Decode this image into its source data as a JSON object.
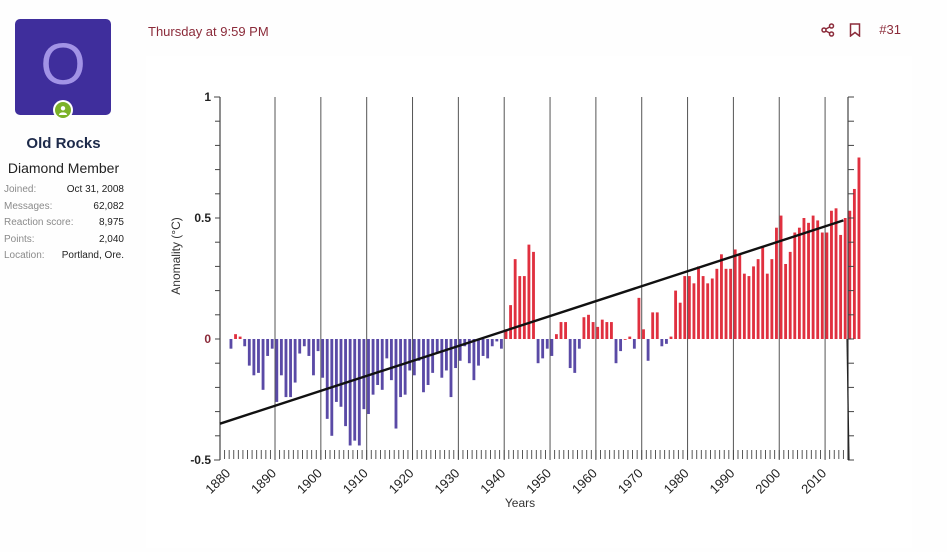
{
  "user": {
    "avatar_letter": "O",
    "avatar_color": "#3f2e9c",
    "name": "Old Rocks",
    "title": "Diamond Member",
    "online": true,
    "stats": [
      {
        "label": "Joined:",
        "value": "Oct 31, 2008"
      },
      {
        "label": "Messages:",
        "value": "62,082"
      },
      {
        "label": "Reaction score:",
        "value": "8,975"
      },
      {
        "label": "Points:",
        "value": "2,040"
      },
      {
        "label": "Location:",
        "value": "Portland, Ore."
      }
    ]
  },
  "post": {
    "date": "Thursday at 9:59 PM",
    "number": "#31",
    "actions": [
      {
        "name": "share",
        "icon": "share-icon"
      },
      {
        "name": "bookmark",
        "icon": "bookmark-icon"
      }
    ]
  },
  "chart_data": {
    "type": "bar",
    "title": "",
    "xlabel": "Years",
    "ylabel": "Anomality (°C)",
    "xlim": [
      1878,
      2015
    ],
    "ylim": [
      -0.5,
      1
    ],
    "yticks": [
      -0.5,
      0,
      0.5,
      1
    ],
    "ytick_labels": [
      "-0.5",
      "0",
      "0.5",
      "1"
    ],
    "xticks": [
      1880,
      1890,
      1900,
      1910,
      1920,
      1930,
      1940,
      1950,
      1960,
      1970,
      1980,
      1990,
      2000,
      2010
    ],
    "xtick_labels": [
      "1880",
      "1890",
      "1900",
      "1910",
      "1920",
      "1930",
      "1940",
      "1950",
      "1960",
      "1970",
      "1980",
      "1990",
      "2000",
      "2010"
    ],
    "grid": "vertical lines at decades",
    "positive_color": "#e0303f",
    "negative_color": "#5a4aa6",
    "start_year": 1880,
    "values": [
      -0.04,
      0.02,
      0.01,
      -0.03,
      -0.11,
      -0.15,
      -0.14,
      -0.21,
      -0.07,
      -0.04,
      -0.26,
      -0.15,
      -0.24,
      -0.24,
      -0.18,
      -0.06,
      -0.03,
      -0.07,
      -0.15,
      -0.05,
      -0.16,
      -0.33,
      -0.4,
      -0.26,
      -0.28,
      -0.36,
      -0.44,
      -0.42,
      -0.44,
      -0.29,
      -0.31,
      -0.23,
      -0.19,
      -0.21,
      -0.08,
      -0.17,
      -0.37,
      -0.24,
      -0.23,
      -0.13,
      -0.15,
      -0.09,
      -0.22,
      -0.19,
      -0.14,
      -0.06,
      -0.16,
      -0.13,
      -0.24,
      -0.12,
      -0.09,
      -0.03,
      -0.1,
      -0.17,
      -0.11,
      -0.07,
      -0.08,
      -0.03,
      -0.01,
      -0.04,
      0.04,
      0.14,
      0.33,
      0.26,
      0.26,
      0.39,
      0.36,
      -0.1,
      -0.08,
      -0.04,
      -0.07,
      0.02,
      0.07,
      0.07,
      -0.12,
      -0.14,
      -0.04,
      0.09,
      0.1,
      0.07,
      0.05,
      0.08,
      0.07,
      0.07,
      -0.1,
      -0.05,
      0.0,
      0.01,
      -0.04,
      0.17,
      0.04,
      -0.09,
      0.11,
      0.11,
      -0.03,
      -0.02,
      0.01,
      0.2,
      0.15,
      0.26,
      0.26,
      0.23,
      0.3,
      0.26,
      0.23,
      0.25,
      0.29,
      0.35,
      0.29,
      0.29,
      0.37,
      0.35,
      0.27,
      0.26,
      0.3,
      0.33,
      0.38,
      0.27,
      0.33,
      0.46,
      0.51,
      0.31,
      0.36,
      0.44,
      0.46,
      0.5,
      0.48,
      0.51,
      0.49,
      0.44,
      0.44,
      0.53,
      0.54,
      0.43,
      0.5,
      0.53,
      0.62,
      0.75
    ],
    "trendline": {
      "x": [
        1878,
        2014
      ],
      "y": [
        -0.35,
        0.49
      ]
    }
  }
}
